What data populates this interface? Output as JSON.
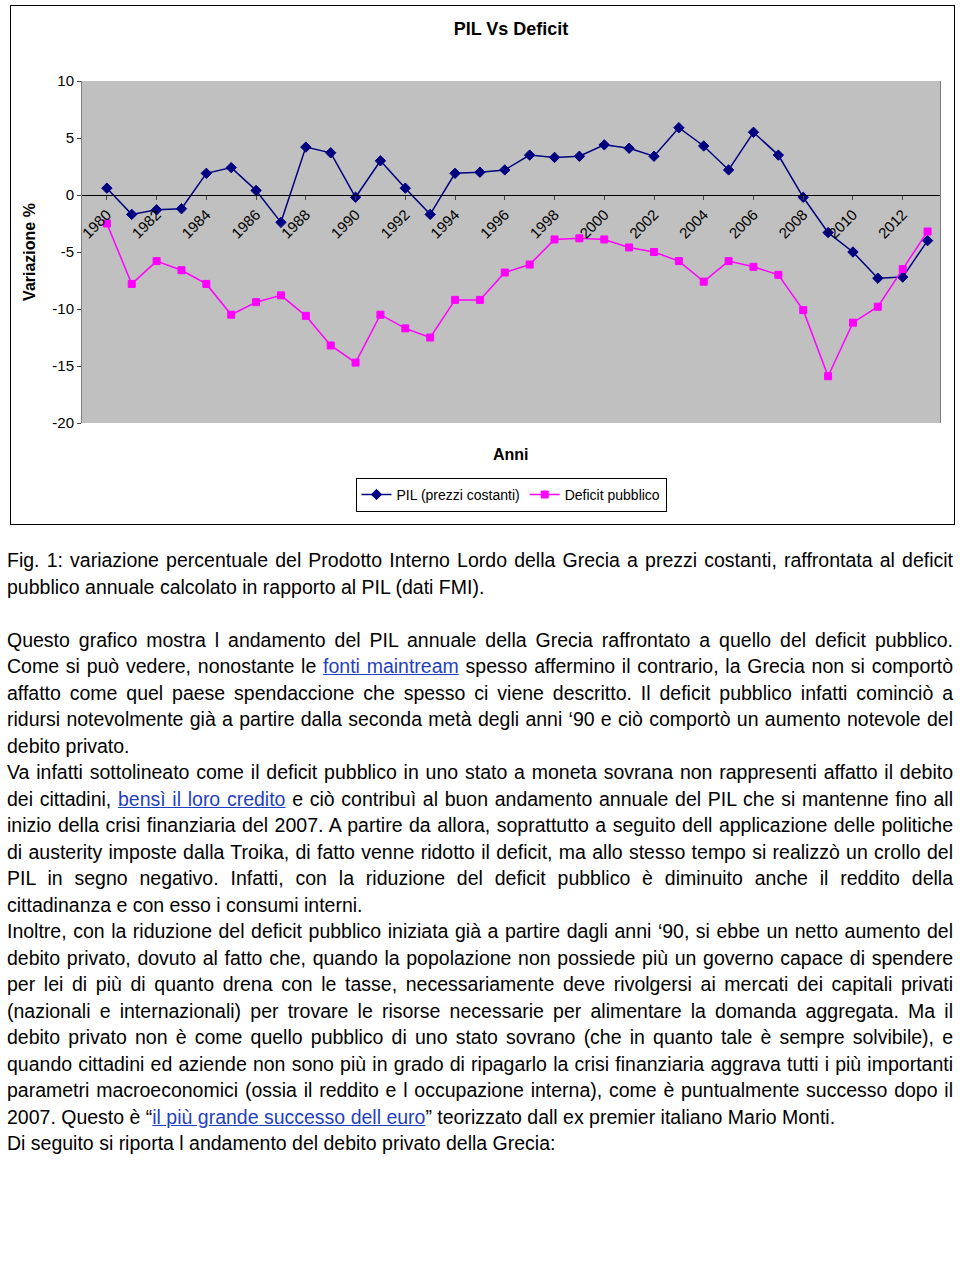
{
  "chart_data": {
    "type": "line",
    "title": "PIL Vs Deficit",
    "xlabel": "Anni",
    "ylabel": "Variazione %",
    "categories": [
      "1980",
      null,
      "1982",
      null,
      "1984",
      null,
      "1986",
      null,
      "1988",
      null,
      "1990",
      null,
      "1992",
      null,
      "1994",
      null,
      "1996",
      null,
      "1998",
      null,
      "2000",
      null,
      "2002",
      null,
      "2004",
      null,
      "2006",
      null,
      "2008",
      null,
      "2010",
      null,
      "2012",
      null
    ],
    "series": [
      {
        "name": "PIL (prezzi costanti)",
        "color": "#000080",
        "marker": "diamond",
        "values": [
          0.6,
          -1.7,
          -1.3,
          -1.2,
          1.9,
          2.4,
          0.4,
          -2.4,
          4.2,
          3.7,
          -0.2,
          3.0,
          0.6,
          -1.7,
          1.9,
          2.0,
          2.2,
          3.5,
          3.3,
          3.4,
          4.4,
          4.1,
          3.4,
          5.9,
          4.3,
          2.2,
          5.5,
          3.5,
          -0.2,
          -3.3,
          -5.0,
          -7.3,
          -7.2,
          -4.0
        ]
      },
      {
        "name": "Deficit pubblico",
        "color": "#ff00ff",
        "marker": "square",
        "values": [
          -2.5,
          -7.8,
          -5.8,
          -6.6,
          -7.8,
          -10.5,
          -9.4,
          -8.8,
          -10.6,
          -13.2,
          -14.7,
          -10.5,
          -11.7,
          -12.5,
          -9.2,
          -9.2,
          -6.8,
          -6.1,
          -3.9,
          -3.8,
          -3.9,
          -4.6,
          -5.0,
          -5.8,
          -7.6,
          -5.8,
          -6.3,
          -7.0,
          -10.1,
          -15.9,
          -11.2,
          -9.8,
          -6.5,
          -3.2
        ]
      }
    ],
    "ylim": [
      -20,
      10
    ],
    "yticks": [
      -20,
      -15,
      -10,
      -5,
      0,
      5,
      10
    ],
    "grid": false,
    "legend": "bottom"
  },
  "document": {
    "caption": "Fig. 1: variazione percentuale del Prodotto Interno Lordo della Grecia a prezzi costanti, raffrontata al deficit pubblico annuale calcolato in rapporto al PIL (dati FMI).",
    "paragraphs": [
      [
        "Questo grafico mostra l andamento del PIL annuale della Grecia raffrontato a quello del deficit pubblico. Come si può vedere, nonostante le ",
        {
          "text": "fonti maintream",
          "link": true
        },
        " spesso affermino il contrario, la Grecia non si comportò affatto come quel paese spendaccione che spesso ci viene descritto. Il deficit pubblico infatti cominciò a ridursi notevolmente già a partire dalla seconda metà degli anni ‘90 e ciò comportò un aumento notevole del debito privato."
      ],
      [
        "Va infatti sottolineato come il deficit pubblico in uno stato a moneta sovrana non rappresenti affatto il debito dei cittadini, ",
        {
          "text": "bensì il loro credito",
          "link": true
        },
        " e ciò contribuì al buon andamento annuale del PIL che si mantenne fino all inizio della crisi finanziaria del 2007. A partire da allora, soprattutto a seguito dell applicazione delle politiche di austerity imposte dalla Troika, di fatto venne ridotto il deficit, ma allo stesso tempo si realizzò un crollo del PIL in segno negativo. Infatti, con la riduzione del deficit pubblico è diminuito anche il reddito della cittadinanza e con esso i consumi interni."
      ],
      [
        "Inoltre, con la riduzione del deficit pubblico iniziata già a partire dagli anni ‘90, si ebbe un netto aumento del debito privato, dovuto al fatto che, quando la popolazione non possiede più un governo capace di spendere per lei di più di quanto drena con le tasse, necessariamente deve rivolgersi ai mercati dei capitali privati (nazionali e internazionali) per trovare le risorse necessarie per alimentare la domanda aggregata. Ma il debito privato non è come quello pubblico di uno stato sovrano (che in quanto tale è sempre solvibile), e quando cittadini ed aziende non sono più in grado di ripagarlo la crisi finanziaria aggrava tutti i più importanti parametri macroeconomici (ossia il reddito e l occupazione interna), come è puntualmente successo dopo il 2007. Questo è “",
        {
          "text": "il più grande successo dell euro",
          "link": true
        },
        "” teorizzato dall ex premier italiano Mario Monti."
      ],
      [
        "Di seguito si riporta l andamento del debito privato della Grecia:"
      ]
    ]
  }
}
